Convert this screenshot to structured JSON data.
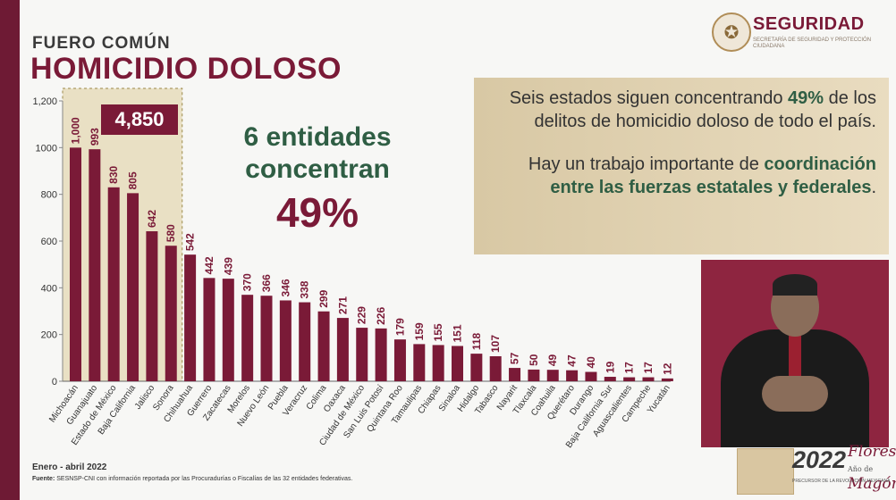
{
  "header": {
    "kicker": "FUERO COMÚN",
    "title": "HOMICIDIO DOLOSO"
  },
  "logo": {
    "name": "SEGURIDAD",
    "subtitle": "SECRETARÍA DE SEGURIDAD Y PROTECCIÓN CIUDADANA",
    "icon": "national-seal-icon"
  },
  "highlight": {
    "total": "4,850",
    "line1": "6 entidades",
    "line2": "concentran",
    "pct": "49%"
  },
  "card": {
    "p1_a": "Seis estados siguen concentrando ",
    "p1_bold": "49%",
    "p1_b": " de los delitos de homicidio doloso de todo el país.",
    "p2_a": "Hay un trabajo importante de ",
    "p2_bold": "coordinación entre las fuerzas estatales y federales",
    "p2_b": "."
  },
  "footer": {
    "period": "Enero - abril 2022",
    "source_label": "Fuente:",
    "source_text": " SESNSP-CNI con información reportada por las Procuradurías o Fiscalías de las 32 entidades federativas."
  },
  "year_logo": {
    "year": "2022",
    "name_line1": "Flores",
    "name_line2": "Magón",
    "prefix": "Año de",
    "subtitle": "PRECURSOR DE LA REVOLUCIÓN MEXICANA"
  },
  "colors": {
    "bar": "#7a1a37",
    "accent_green": "#2f5e44",
    "stripe": "#6e1a34"
  },
  "chart_data": {
    "type": "bar",
    "title": "HOMICIDIO DOLOSO",
    "xlabel": "",
    "ylabel": "",
    "ylim": [
      0,
      1200
    ],
    "yticks": [
      0,
      200,
      400,
      600,
      800,
      1000,
      1200
    ],
    "ytick_labels": [
      "0",
      "200",
      "400",
      "600",
      "800",
      "1000",
      "1,200"
    ],
    "categories": [
      "Michoacán",
      "Guanajuato",
      "Estado de México",
      "Baja California",
      "Jalisco",
      "Sonora",
      "Chihuahua",
      "Guerrero",
      "Zacatecas",
      "Morelos",
      "Nuevo León",
      "Puebla",
      "Veracruz",
      "Colima",
      "Oaxaca",
      "Ciudad de México",
      "San Luis Potosí",
      "Quintana Roo",
      "Tamaulipas",
      "Chiapas",
      "Sinaloa",
      "Hidalgo",
      "Tabasco",
      "Nayarit",
      "Tlaxcala",
      "Coahuila",
      "Querétaro",
      "Durango",
      "Baja California Sur",
      "Aguascalientes",
      "Campeche",
      "Yucatán"
    ],
    "values": [
      1000,
      993,
      830,
      805,
      642,
      580,
      542,
      442,
      439,
      370,
      366,
      346,
      338,
      299,
      271,
      229,
      226,
      179,
      159,
      155,
      151,
      118,
      107,
      57,
      50,
      49,
      47,
      40,
      19,
      17,
      17,
      12
    ],
    "value_labels": [
      "1,000",
      "993",
      "830",
      "805",
      "642",
      "580",
      "542",
      "442",
      "439",
      "370",
      "366",
      "346",
      "338",
      "299",
      "271",
      "229",
      "226",
      "179",
      "159",
      "155",
      "151",
      "118",
      "107",
      "57",
      "50",
      "49",
      "47",
      "40",
      "19",
      "17",
      "17",
      "12"
    ],
    "highlighted_count": 6
  }
}
